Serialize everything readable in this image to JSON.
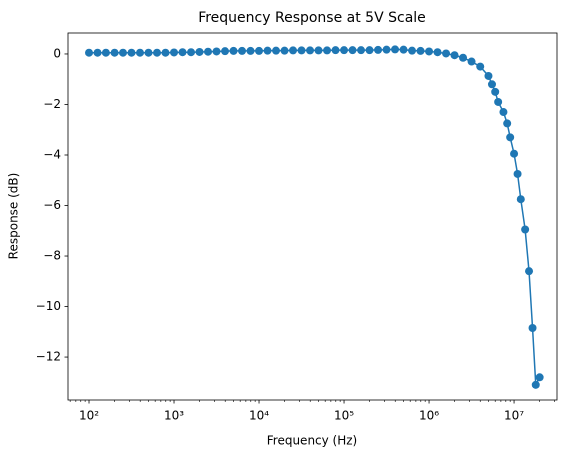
{
  "chart_data": {
    "type": "line",
    "title": "Frequency Response at 5V Scale",
    "xlabel": "Frequency (Hz)",
    "ylabel": "Response (dB)",
    "xscale": "log",
    "marker": "circle",
    "xlim": [
      56.6,
      32000000
    ],
    "ylim": [
      -13.7,
      0.83
    ],
    "xticks": [
      {
        "value": 100,
        "label": "10²"
      },
      {
        "value": 1000,
        "label": "10³"
      },
      {
        "value": 10000,
        "label": "10⁴"
      },
      {
        "value": 100000,
        "label": "10⁵"
      },
      {
        "value": 1000000,
        "label": "10⁶"
      },
      {
        "value": 10000000,
        "label": "10⁷"
      }
    ],
    "xminorticks": [
      60,
      70,
      80,
      90,
      200,
      300,
      400,
      500,
      600,
      700,
      800,
      900,
      2000,
      3000,
      4000,
      5000,
      6000,
      7000,
      8000,
      9000,
      20000,
      30000,
      40000,
      50000,
      60000,
      70000,
      80000,
      90000,
      200000,
      300000,
      400000,
      500000,
      600000,
      700000,
      800000,
      900000,
      2000000,
      3000000,
      4000000,
      5000000,
      6000000,
      7000000,
      8000000,
      9000000,
      20000000,
      30000000
    ],
    "yticks": [
      {
        "value": -12,
        "label": "−12"
      },
      {
        "value": -10,
        "label": "−10"
      },
      {
        "value": -8,
        "label": "−8"
      },
      {
        "value": -6,
        "label": "−6"
      },
      {
        "value": -4,
        "label": "−4"
      },
      {
        "value": -2,
        "label": "−2"
      },
      0
    ],
    "x": [
      100,
      126,
      158,
      200,
      251,
      316,
      398,
      501,
      631,
      794,
      1000,
      1259,
      1585,
      1995,
      2512,
      3162,
      3981,
      5012,
      6310,
      7943,
      10000,
      12589,
      15849,
      19953,
      25119,
      31623,
      39811,
      50119,
      63096,
      79433,
      100000,
      125893,
      158489,
      199526,
      251189,
      316228,
      398107,
      501187,
      630957,
      794328,
      1000000,
      1258925,
      1584893,
      1995262,
      2511886,
      3162278,
      4000000,
      5000000,
      5500000,
      6000000,
      6500000,
      7500000,
      8300000,
      9000000,
      10000000,
      11000000,
      12000000,
      13500000,
      15000000,
      16500000,
      18000000,
      20000000
    ],
    "series": [
      {
        "name": "Response",
        "color": "#1f77b4",
        "values": [
          0.05,
          0.05,
          0.05,
          0.05,
          0.05,
          0.05,
          0.05,
          0.05,
          0.05,
          0.05,
          0.06,
          0.07,
          0.07,
          0.08,
          0.09,
          0.1,
          0.11,
          0.12,
          0.12,
          0.12,
          0.12,
          0.13,
          0.13,
          0.13,
          0.14,
          0.14,
          0.14,
          0.14,
          0.14,
          0.15,
          0.15,
          0.15,
          0.15,
          0.15,
          0.16,
          0.17,
          0.18,
          0.17,
          0.13,
          0.12,
          0.1,
          0.07,
          0.02,
          -0.05,
          -0.15,
          -0.3,
          -0.5,
          -0.87,
          -1.2,
          -1.5,
          -1.9,
          -2.3,
          -2.75,
          -3.3,
          -3.95,
          -4.75,
          -5.75,
          -6.95,
          -8.6,
          -10.85,
          -13.1,
          -12.8
        ]
      }
    ]
  }
}
